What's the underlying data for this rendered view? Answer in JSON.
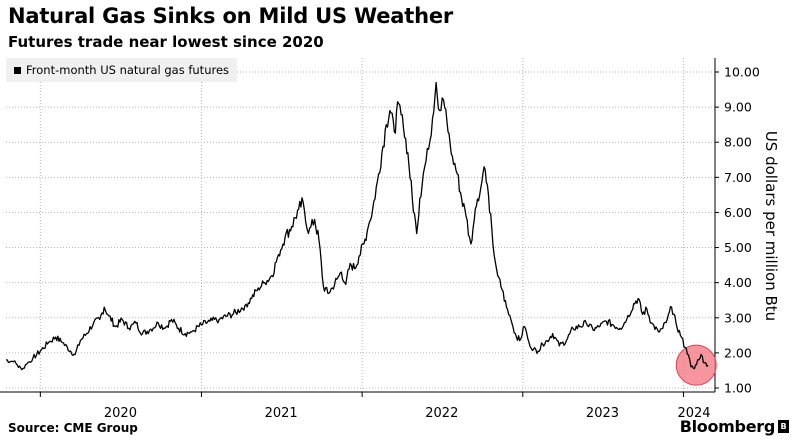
{
  "header": {
    "title": "Natural Gas Sinks on Mild US Weather",
    "subtitle": "Futures trade near lowest since 2020"
  },
  "footer": {
    "source": "Source: CME Group",
    "brand": "Bloomberg"
  },
  "chart_data": {
    "type": "line",
    "title": "Natural Gas Sinks on Mild US Weather",
    "subtitle": "Futures trade near lowest since 2020",
    "ylabel": "US dollars per million Btu",
    "xlabel": "",
    "ylim": [
      1.0,
      10.0
    ],
    "yticks": [
      "1.00",
      "2.00",
      "3.00",
      "4.00",
      "5.00",
      "6.00",
      "7.00",
      "8.00",
      "9.00",
      "10.00"
    ],
    "xticks": [
      "2020",
      "2021",
      "2022",
      "2023",
      "2024"
    ],
    "xrange": [
      "2019-10-15",
      "2024-02-28"
    ],
    "grid": true,
    "legend": "top-left",
    "colors": {
      "line": "#000000",
      "highlight": "#f47a85",
      "legend_bg": "#f0f0f0"
    },
    "highlight_circle_at": {
      "x": "2024-01-30",
      "y": 1.65
    },
    "series": [
      {
        "name": "Front-month US natural gas futures",
        "points": [
          [
            "2019-10-15",
            1.8
          ],
          [
            "2019-11-01",
            1.75
          ],
          [
            "2019-11-10",
            1.65
          ],
          [
            "2019-11-20",
            1.52
          ],
          [
            "2019-12-01",
            1.68
          ],
          [
            "2019-12-15",
            1.85
          ],
          [
            "2020-01-01",
            2.05
          ],
          [
            "2020-01-20",
            2.3
          ],
          [
            "2020-02-05",
            2.45
          ],
          [
            "2020-02-20",
            2.3
          ],
          [
            "2020-03-10",
            2.05
          ],
          [
            "2020-03-20",
            1.95
          ],
          [
            "2020-04-01",
            2.35
          ],
          [
            "2020-04-15",
            2.55
          ],
          [
            "2020-05-01",
            2.85
          ],
          [
            "2020-05-15",
            2.95
          ],
          [
            "2020-05-25",
            3.3
          ],
          [
            "2020-06-05",
            3.05
          ],
          [
            "2020-06-20",
            2.75
          ],
          [
            "2020-07-05",
            2.95
          ],
          [
            "2020-07-20",
            2.7
          ],
          [
            "2020-08-05",
            2.85
          ],
          [
            "2020-08-20",
            2.55
          ],
          [
            "2020-09-05",
            2.65
          ],
          [
            "2020-09-25",
            2.85
          ],
          [
            "2020-10-10",
            2.7
          ],
          [
            "2020-10-25",
            2.95
          ],
          [
            "2020-11-10",
            2.7
          ],
          [
            "2020-11-25",
            2.55
          ],
          [
            "2020-12-10",
            2.6
          ],
          [
            "2021-01-01",
            2.8
          ],
          [
            "2021-01-20",
            2.9
          ],
          [
            "2021-02-10",
            2.95
          ],
          [
            "2021-03-01",
            3.05
          ],
          [
            "2021-03-20",
            3.15
          ],
          [
            "2021-04-10",
            3.35
          ],
          [
            "2021-04-25",
            3.55
          ],
          [
            "2021-05-10",
            3.85
          ],
          [
            "2021-05-25",
            4.0
          ],
          [
            "2021-06-10",
            4.2
          ],
          [
            "2021-06-25",
            4.8
          ],
          [
            "2021-07-10",
            5.3
          ],
          [
            "2021-07-25",
            5.6
          ],
          [
            "2021-08-10",
            6.1
          ],
          [
            "2021-08-20",
            6.3
          ],
          [
            "2021-09-01",
            5.4
          ],
          [
            "2021-09-15",
            5.8
          ],
          [
            "2021-09-25",
            5.2
          ],
          [
            "2021-10-05",
            3.9
          ],
          [
            "2021-10-15",
            3.7
          ],
          [
            "2021-10-25",
            3.85
          ],
          [
            "2021-11-05",
            4.1
          ],
          [
            "2021-11-15",
            4.3
          ],
          [
            "2021-11-25",
            3.95
          ],
          [
            "2021-12-05",
            4.55
          ],
          [
            "2021-12-15",
            4.4
          ],
          [
            "2021-12-25",
            4.75
          ],
          [
            "2022-01-05",
            5.1
          ],
          [
            "2022-01-15",
            5.6
          ],
          [
            "2022-01-25",
            6.1
          ],
          [
            "2022-02-05",
            6.9
          ],
          [
            "2022-02-15",
            7.7
          ],
          [
            "2022-02-25",
            8.5
          ],
          [
            "2022-03-05",
            8.9
          ],
          [
            "2022-03-15",
            8.3
          ],
          [
            "2022-03-25",
            9.1
          ],
          [
            "2022-04-05",
            8.4
          ],
          [
            "2022-04-15",
            7.7
          ],
          [
            "2022-04-25",
            6.4
          ],
          [
            "2022-05-05",
            5.4
          ],
          [
            "2022-05-12",
            6.4
          ],
          [
            "2022-05-20",
            7.1
          ],
          [
            "2022-06-01",
            7.8
          ],
          [
            "2022-06-10",
            8.7
          ],
          [
            "2022-06-18",
            9.7
          ],
          [
            "2022-06-26",
            8.9
          ],
          [
            "2022-07-05",
            9.2
          ],
          [
            "2022-07-15",
            8.3
          ],
          [
            "2022-07-25",
            7.6
          ],
          [
            "2022-08-05",
            7.1
          ],
          [
            "2022-08-15",
            6.4
          ],
          [
            "2022-08-25",
            5.9
          ],
          [
            "2022-09-05",
            5.1
          ],
          [
            "2022-09-15",
            6.1
          ],
          [
            "2022-09-25",
            6.5
          ],
          [
            "2022-10-05",
            7.3
          ],
          [
            "2022-10-15",
            6.5
          ],
          [
            "2022-10-25",
            5.1
          ],
          [
            "2022-11-05",
            4.2
          ],
          [
            "2022-11-15",
            3.8
          ],
          [
            "2022-11-25",
            3.3
          ],
          [
            "2022-12-05",
            2.95
          ],
          [
            "2022-12-15",
            2.55
          ],
          [
            "2022-12-25",
            2.35
          ],
          [
            "2023-01-05",
            2.75
          ],
          [
            "2023-01-15",
            2.3
          ],
          [
            "2023-01-25",
            2.1
          ],
          [
            "2023-02-05",
            2.05
          ],
          [
            "2023-02-15",
            2.25
          ],
          [
            "2023-02-25",
            2.35
          ],
          [
            "2023-03-10",
            2.55
          ],
          [
            "2023-03-25",
            2.2
          ],
          [
            "2023-04-10",
            2.35
          ],
          [
            "2023-04-25",
            2.7
          ],
          [
            "2023-05-10",
            2.75
          ],
          [
            "2023-05-25",
            2.85
          ],
          [
            "2023-06-10",
            2.65
          ],
          [
            "2023-06-25",
            2.75
          ],
          [
            "2023-07-10",
            2.9
          ],
          [
            "2023-07-25",
            2.8
          ],
          [
            "2023-08-10",
            2.7
          ],
          [
            "2023-08-25",
            2.95
          ],
          [
            "2023-09-10",
            3.4
          ],
          [
            "2023-09-20",
            3.55
          ],
          [
            "2023-09-30",
            3.1
          ],
          [
            "2023-10-10",
            3.25
          ],
          [
            "2023-10-20",
            2.85
          ],
          [
            "2023-11-05",
            2.6
          ],
          [
            "2023-11-15",
            2.7
          ],
          [
            "2023-11-25",
            2.95
          ],
          [
            "2023-12-05",
            3.3
          ],
          [
            "2023-12-15",
            2.85
          ],
          [
            "2023-12-25",
            2.5
          ],
          [
            "2024-01-05",
            2.15
          ],
          [
            "2024-01-12",
            1.95
          ],
          [
            "2024-01-18",
            1.6
          ],
          [
            "2024-01-26",
            1.55
          ],
          [
            "2024-02-02",
            1.8
          ],
          [
            "2024-02-10",
            1.95
          ],
          [
            "2024-02-18",
            1.72
          ],
          [
            "2024-02-26",
            1.65
          ]
        ]
      }
    ]
  }
}
